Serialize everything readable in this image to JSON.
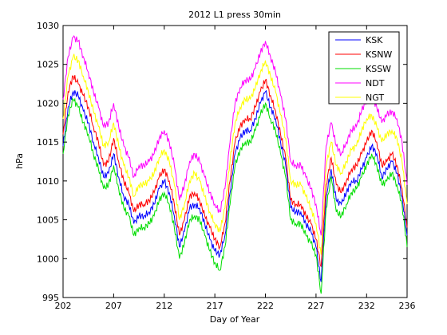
{
  "chart_data": {
    "type": "line",
    "title": "2012 L1 press 30min",
    "xlabel": "Day of Year",
    "ylabel": "hPa",
    "xlim": [
      202,
      236
    ],
    "ylim": [
      995,
      1030
    ],
    "xticks": [
      202,
      207,
      212,
      217,
      222,
      227,
      232,
      236
    ],
    "yticks": [
      995,
      1000,
      1005,
      1010,
      1015,
      1020,
      1025,
      1030
    ],
    "grid": false,
    "legend_position": "top-right",
    "x": [
      202.0,
      202.5,
      203.0,
      203.5,
      204.0,
      204.5,
      205.0,
      205.5,
      206.0,
      206.5,
      207.0,
      207.5,
      208.0,
      208.5,
      209.0,
      209.5,
      210.0,
      210.5,
      211.0,
      211.5,
      212.0,
      212.5,
      213.0,
      213.5,
      214.0,
      214.5,
      215.0,
      215.5,
      216.0,
      216.5,
      217.0,
      217.5,
      218.0,
      218.5,
      219.0,
      219.5,
      220.0,
      220.5,
      221.0,
      221.5,
      222.0,
      222.5,
      223.0,
      223.5,
      224.0,
      224.5,
      225.0,
      225.5,
      226.0,
      226.5,
      227.0,
      227.5,
      228.0,
      228.5,
      229.0,
      229.5,
      230.0,
      230.5,
      231.0,
      231.5,
      232.0,
      232.5,
      233.0,
      233.5,
      234.0,
      234.5,
      235.0,
      235.5,
      236.0
    ],
    "series": [
      {
        "name": "KSK",
        "color": "#0000ff",
        "values": [
          1014.5,
          1019.5,
          1021.5,
          1021.0,
          1019.0,
          1017.5,
          1015.0,
          1013.0,
          1010.5,
          1011.0,
          1013.5,
          1010.5,
          1008.0,
          1007.0,
          1004.5,
          1005.5,
          1005.5,
          1006.0,
          1007.0,
          1009.0,
          1010.0,
          1008.5,
          1005.5,
          1001.5,
          1003.5,
          1006.5,
          1007.0,
          1006.5,
          1004.5,
          1002.5,
          1001.0,
          1000.5,
          1003.0,
          1008.5,
          1013.5,
          1015.5,
          1016.5,
          1016.5,
          1018.0,
          1020.0,
          1021.5,
          1019.5,
          1018.0,
          1015.0,
          1012.0,
          1006.5,
          1006.0,
          1006.0,
          1004.5,
          1003.5,
          1001.5,
          997.0,
          1008.0,
          1011.5,
          1007.5,
          1007.0,
          1008.5,
          1010.0,
          1010.0,
          1011.5,
          1013.0,
          1014.5,
          1013.5,
          1010.5,
          1011.5,
          1012.5,
          1011.0,
          1008.0,
          1003.0
        ]
      },
      {
        "name": "KSNW",
        "color": "#ff0000",
        "values": [
          1016.0,
          1021.5,
          1023.5,
          1022.5,
          1021.0,
          1019.5,
          1017.0,
          1015.0,
          1012.0,
          1012.5,
          1015.5,
          1012.5,
          1010.0,
          1008.5,
          1006.0,
          1007.0,
          1007.0,
          1007.5,
          1008.5,
          1010.5,
          1011.5,
          1010.0,
          1007.0,
          1003.0,
          1005.0,
          1008.0,
          1008.5,
          1007.5,
          1005.5,
          1004.0,
          1002.5,
          1001.5,
          1004.5,
          1010.0,
          1015.0,
          1017.0,
          1018.0,
          1018.0,
          1019.5,
          1021.5,
          1023.0,
          1021.0,
          1019.0,
          1016.0,
          1013.0,
          1007.5,
          1007.0,
          1007.0,
          1005.5,
          1004.5,
          1002.5,
          999.0,
          1009.5,
          1013.0,
          1009.5,
          1008.5,
          1010.0,
          1011.5,
          1012.0,
          1013.5,
          1015.0,
          1016.5,
          1015.0,
          1012.0,
          1012.5,
          1013.5,
          1012.0,
          1009.0,
          1004.0
        ]
      },
      {
        "name": "KSSW",
        "color": "#00dd00",
        "values": [
          1013.5,
          1018.5,
          1020.5,
          1019.5,
          1017.5,
          1016.0,
          1013.5,
          1011.5,
          1009.0,
          1009.5,
          1012.0,
          1009.0,
          1006.5,
          1005.5,
          1003.0,
          1004.0,
          1004.0,
          1004.5,
          1005.5,
          1007.5,
          1008.5,
          1007.0,
          1004.0,
          1000.0,
          1002.0,
          1005.0,
          1005.5,
          1005.0,
          1003.0,
          1001.0,
          999.5,
          998.5,
          1001.5,
          1007.0,
          1012.0,
          1014.0,
          1015.0,
          1015.0,
          1016.5,
          1018.5,
          1020.0,
          1018.0,
          1016.5,
          1013.5,
          1010.5,
          1005.0,
          1004.5,
          1004.5,
          1003.0,
          1002.0,
          1000.5,
          995.5,
          1006.5,
          1010.5,
          1006.0,
          1005.5,
          1007.0,
          1008.5,
          1009.0,
          1010.5,
          1012.0,
          1013.5,
          1012.0,
          1009.5,
          1010.0,
          1011.0,
          1009.5,
          1007.0,
          1001.5
        ]
      },
      {
        "name": "NDT",
        "color": "#ff00ff",
        "values": [
          1020.5,
          1026.0,
          1028.5,
          1028.0,
          1026.0,
          1024.0,
          1021.5,
          1019.5,
          1017.0,
          1017.5,
          1020.0,
          1017.0,
          1014.5,
          1013.0,
          1010.5,
          1012.0,
          1012.0,
          1012.5,
          1013.5,
          1015.5,
          1016.5,
          1015.0,
          1012.0,
          1007.5,
          1009.5,
          1012.5,
          1013.5,
          1012.5,
          1010.5,
          1008.5,
          1007.0,
          1006.0,
          1009.0,
          1015.0,
          1020.0,
          1022.0,
          1023.0,
          1023.0,
          1024.5,
          1026.5,
          1028.0,
          1026.0,
          1024.0,
          1021.0,
          1018.0,
          1012.5,
          1012.0,
          1012.0,
          1010.5,
          1009.0,
          1007.0,
          1003.0,
          1014.5,
          1017.5,
          1014.5,
          1013.5,
          1015.0,
          1016.5,
          1017.0,
          1019.0,
          1020.5,
          1021.0,
          1019.5,
          1017.5,
          1018.5,
          1019.0,
          1018.0,
          1015.0,
          1009.5
        ]
      },
      {
        "name": "NGT",
        "color": "#ffff00",
        "values": [
          1018.0,
          1023.5,
          1026.0,
          1025.5,
          1023.5,
          1021.5,
          1019.0,
          1017.0,
          1014.5,
          1015.0,
          1017.5,
          1014.5,
          1012.0,
          1010.5,
          1008.0,
          1009.5,
          1009.5,
          1010.0,
          1011.0,
          1013.0,
          1014.0,
          1012.5,
          1009.5,
          1005.0,
          1007.0,
          1010.0,
          1011.0,
          1010.0,
          1008.0,
          1006.0,
          1004.5,
          1003.5,
          1006.5,
          1012.5,
          1017.5,
          1019.5,
          1020.5,
          1020.5,
          1022.0,
          1024.0,
          1025.5,
          1023.5,
          1021.5,
          1018.5,
          1015.5,
          1010.0,
          1009.5,
          1009.5,
          1008.0,
          1006.5,
          1004.5,
          1000.5,
          1012.0,
          1015.0,
          1012.0,
          1011.0,
          1012.5,
          1014.0,
          1014.5,
          1016.5,
          1018.0,
          1018.5,
          1017.0,
          1015.0,
          1016.0,
          1016.5,
          1015.5,
          1012.5,
          1007.0
        ]
      }
    ]
  }
}
